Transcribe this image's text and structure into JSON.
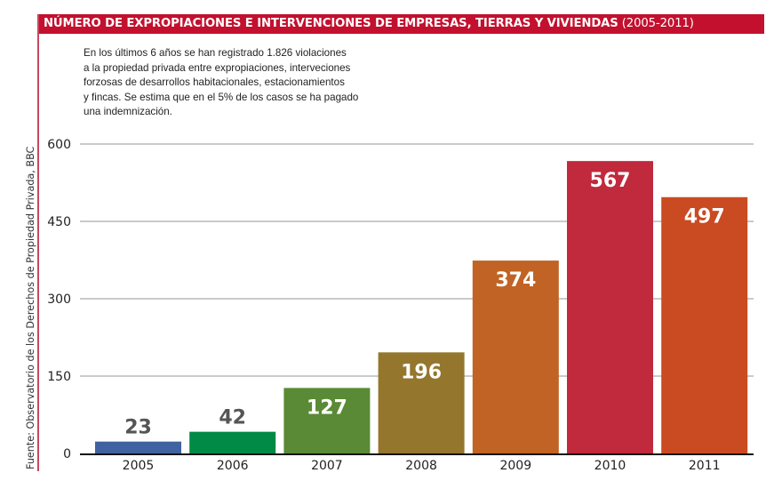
{
  "header": {
    "title": "NÚMERO DE EXPROPIACIONES E INTERVENCIONES DE EMPRESAS, TIERRAS Y VIVIENDAS",
    "years": " (2005-2011)"
  },
  "intro": {
    "lines": [
      "En los últimos 6 años se han registrado 1.826 violaciones",
      "a la propiedad privada entre expropiaciones, interveciones",
      "forzosas de desarrollos habitacionales, estacionamientos",
      "y fincas. Se estima que en el 5% de los casos se ha pagado",
      "una indemnización."
    ]
  },
  "source": "Fuente: Observatorio de los  Derechos de Propiedad Privada, BBC",
  "colors": {
    "header": "#c3102e",
    "gridline": "#b8b8b8",
    "axis": "#111111",
    "label_dark": "#555555",
    "label_light": "#ffffff"
  },
  "chart_data": {
    "type": "bar",
    "title": "NÚMERO DE EXPROPIACIONES E INTERVENCIONES DE EMPRESAS, TIERRAS Y VIVIENDAS (2005-2011)",
    "xlabel": "",
    "ylabel": "",
    "categories": [
      "2005",
      "2006",
      "2007",
      "2008",
      "2009",
      "2010",
      "2011"
    ],
    "values": [
      23,
      42,
      127,
      196,
      374,
      567,
      497
    ],
    "bar_colors": [
      "#4062a0",
      "#008a45",
      "#5a8a35",
      "#94762d",
      "#c06324",
      "#c1293c",
      "#ca4a22"
    ],
    "ylim": [
      0,
      600
    ],
    "yticks": [
      0,
      150,
      300,
      450,
      600
    ],
    "grid": true,
    "legend": "none",
    "value_labels": "inside-top (outside above for small bars)"
  }
}
